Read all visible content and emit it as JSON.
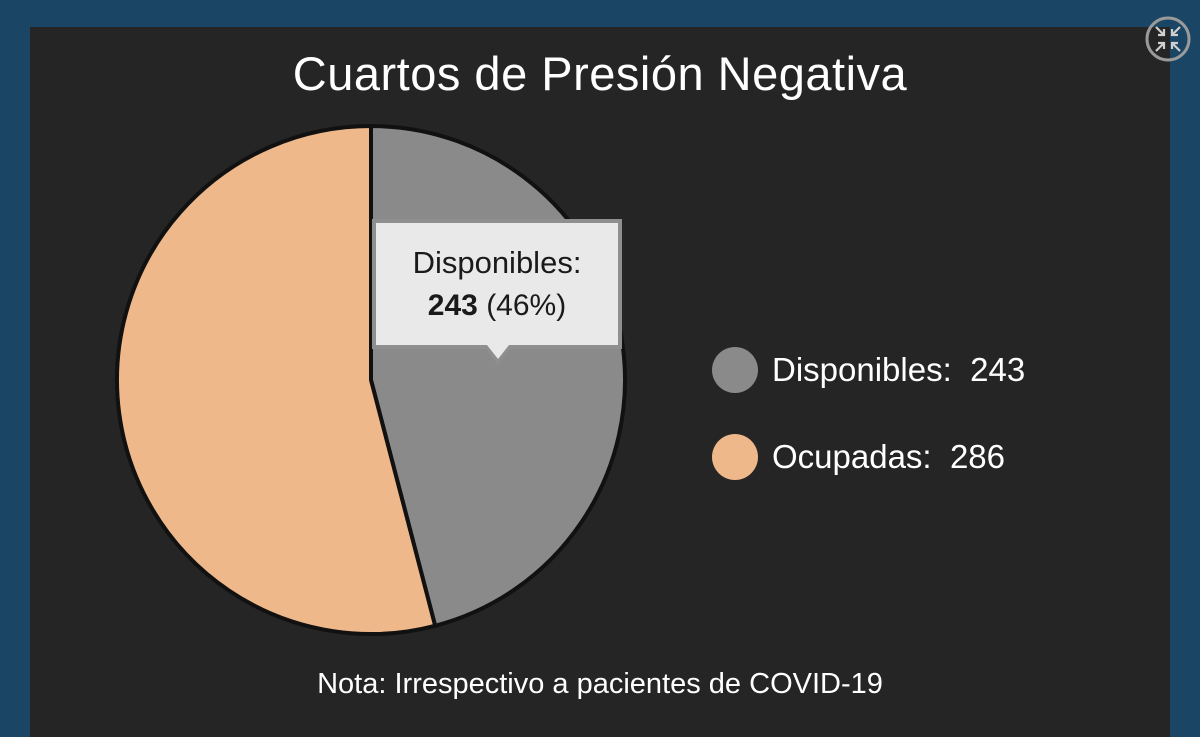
{
  "chart_data": {
    "type": "pie",
    "title": "Cuartos de Presión Negativa",
    "categories": [
      "Disponibles",
      "Ocupadas"
    ],
    "values": [
      243,
      286
    ],
    "colors": [
      "#8a8a8a",
      "#efb88a"
    ],
    "legend_position": "right"
  },
  "tooltip": {
    "label": "Disponibles:",
    "value": "243",
    "percent": "(46%)"
  },
  "legend": {
    "items": [
      {
        "label": "Disponibles:",
        "value": "243",
        "color": "#8a8a8a"
      },
      {
        "label": "Ocupadas:",
        "value": "286",
        "color": "#efb88a"
      }
    ]
  },
  "footnote": "Nota: Irrespectivo a pacientes de COVID-19",
  "icons": {
    "fullscreen": "exit-fullscreen-icon"
  }
}
